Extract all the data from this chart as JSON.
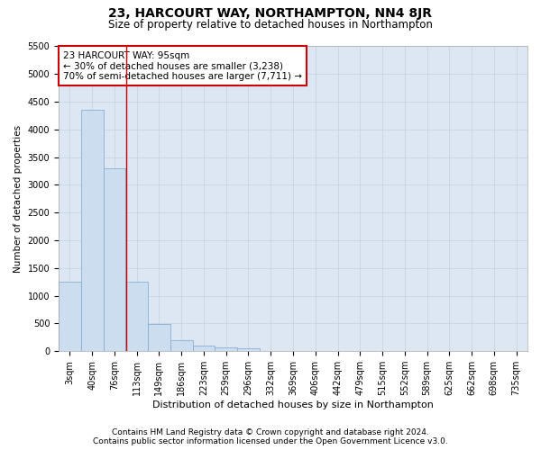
{
  "title": "23, HARCOURT WAY, NORTHAMPTON, NN4 8JR",
  "subtitle": "Size of property relative to detached houses in Northampton",
  "xlabel": "Distribution of detached houses by size in Northampton",
  "ylabel": "Number of detached properties",
  "footer_line1": "Contains HM Land Registry data © Crown copyright and database right 2024.",
  "footer_line2": "Contains public sector information licensed under the Open Government Licence v3.0.",
  "bin_labels": [
    "3sqm",
    "40sqm",
    "76sqm",
    "113sqm",
    "149sqm",
    "186sqm",
    "223sqm",
    "259sqm",
    "296sqm",
    "332sqm",
    "369sqm",
    "406sqm",
    "442sqm",
    "479sqm",
    "515sqm",
    "552sqm",
    "589sqm",
    "625sqm",
    "662sqm",
    "698sqm",
    "735sqm"
  ],
  "bar_values": [
    1250,
    4350,
    3300,
    1250,
    490,
    200,
    100,
    75,
    50,
    0,
    0,
    0,
    0,
    0,
    0,
    0,
    0,
    0,
    0,
    0,
    0
  ],
  "bar_color": "#ccddf0",
  "bar_edge_color": "#89afd4",
  "grid_color": "#c8d4e0",
  "background_color": "#dce7f3",
  "annotation_box_text": "23 HARCOURT WAY: 95sqm\n← 30% of detached houses are smaller (3,238)\n70% of semi-detached houses are larger (7,711) →",
  "annotation_box_color": "#ffffff",
  "annotation_box_edge_color": "#cc0000",
  "red_line_x": 2.53,
  "ylim": [
    0,
    5500
  ],
  "yticks": [
    0,
    500,
    1000,
    1500,
    2000,
    2500,
    3000,
    3500,
    4000,
    4500,
    5000,
    5500
  ],
  "title_fontsize": 10,
  "subtitle_fontsize": 8.5,
  "xlabel_fontsize": 8,
  "ylabel_fontsize": 7.5,
  "tick_fontsize": 7,
  "footer_fontsize": 6.5,
  "annot_fontsize": 7.5
}
